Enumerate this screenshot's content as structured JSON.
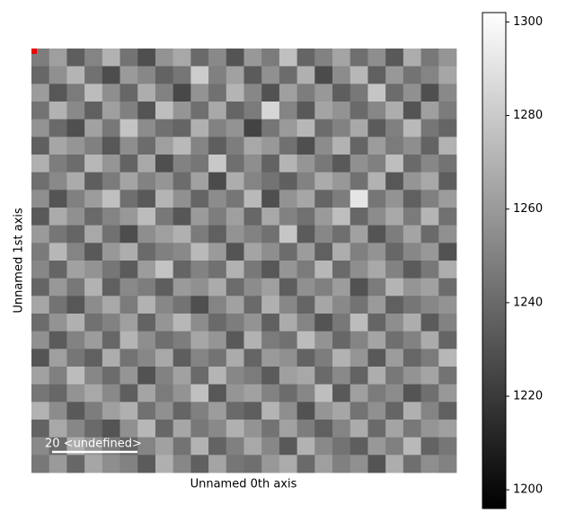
{
  "chart_data": {
    "type": "heatmap",
    "colormap": "gray",
    "xlabel": "Unnamed 0th axis",
    "ylabel": "Unnamed 1st axis",
    "scalebar_label": "20 <undefined>",
    "clim": [
      1196,
      1302
    ],
    "cticks": [
      1200,
      1220,
      1240,
      1260,
      1280,
      1300
    ],
    "values": [
      [
        1248,
        1262,
        1235,
        1251,
        1270,
        1244,
        1229,
        1257,
        1266,
        1240,
        1253,
        1231,
        1259,
        1247,
        1276,
        1238,
        1250,
        1264,
        1242,
        1255,
        1233,
        1268,
        1246,
        1258
      ],
      [
        1239,
        1256,
        1271,
        1243,
        1228,
        1260,
        1252,
        1237,
        1245,
        1281,
        1249,
        1263,
        1234,
        1256,
        1241,
        1269,
        1227,
        1254,
        1272,
        1236,
        1259,
        1244,
        1251,
        1265
      ],
      [
        1261,
        1232,
        1247,
        1274,
        1255,
        1239,
        1268,
        1250,
        1226,
        1257,
        1243,
        1271,
        1252,
        1230,
        1262,
        1248,
        1259,
        1235,
        1246,
        1278,
        1241,
        1256,
        1229,
        1253
      ],
      [
        1244,
        1270,
        1253,
        1236,
        1262,
        1249,
        1231,
        1275,
        1258,
        1242,
        1266,
        1238,
        1247,
        1285,
        1251,
        1233,
        1264,
        1257,
        1240,
        1252,
        1268,
        1231,
        1262,
        1247
      ],
      [
        1257,
        1240,
        1229,
        1263,
        1246,
        1277,
        1254,
        1243,
        1238,
        1269,
        1250,
        1257,
        1224,
        1245,
        1260,
        1272,
        1241,
        1250,
        1266,
        1234,
        1249,
        1273,
        1245,
        1238
      ],
      [
        1236,
        1265,
        1258,
        1249,
        1232,
        1255,
        1241,
        1262,
        1273,
        1251,
        1235,
        1248,
        1266,
        1259,
        1243,
        1229,
        1254,
        1270,
        1238,
        1261,
        1247,
        1255,
        1237,
        1270
      ],
      [
        1269,
        1248,
        1241,
        1272,
        1258,
        1237,
        1266,
        1229,
        1250,
        1245,
        1279,
        1242,
        1255,
        1237,
        1271,
        1258,
        1246,
        1233,
        1256,
        1249,
        1275,
        1240,
        1252,
        1244
      ],
      [
        1242,
        1253,
        1267,
        1235,
        1247,
        1264,
        1250,
        1258,
        1241,
        1263,
        1227,
        1268,
        1251,
        1244,
        1236,
        1250,
        1267,
        1259,
        1243,
        1270,
        1232,
        1258,
        1266,
        1235
      ],
      [
        1255,
        1231,
        1249,
        1261,
        1276,
        1242,
        1233,
        1271,
        1256,
        1238,
        1254,
        1245,
        1273,
        1229,
        1257,
        1265,
        1238,
        1248,
        1291,
        1245,
        1257,
        1236,
        1249,
        1261
      ],
      [
        1233,
        1267,
        1256,
        1240,
        1251,
        1259,
        1274,
        1246,
        1232,
        1260,
        1248,
        1262,
        1239,
        1266,
        1250,
        1243,
        1260,
        1275,
        1239,
        1254,
        1266,
        1247,
        1271,
        1243
      ],
      [
        1260,
        1245,
        1238,
        1266,
        1243,
        1228,
        1255,
        1262,
        1269,
        1247,
        1236,
        1257,
        1250,
        1243,
        1278,
        1234,
        1252,
        1242,
        1263,
        1231,
        1248,
        1264,
        1240,
        1256
      ],
      [
        1247,
        1272,
        1251,
        1233,
        1259,
        1268,
        1240,
        1249,
        1253,
        1273,
        1260,
        1231,
        1264,
        1255,
        1241,
        1261,
        1236,
        1268,
        1249,
        1257,
        1239,
        1252,
        1259,
        1230
      ],
      [
        1252,
        1238,
        1263,
        1257,
        1245,
        1234,
        1261,
        1277,
        1238,
        1250,
        1243,
        1270,
        1246,
        1232,
        1258,
        1247,
        1272,
        1240,
        1255,
        1266,
        1250,
        1234,
        1246,
        1268
      ],
      [
        1238,
        1259,
        1246,
        1270,
        1236,
        1253,
        1248,
        1235,
        1260,
        1256,
        1267,
        1241,
        1254,
        1262,
        1235,
        1256,
        1249,
        1261,
        1230,
        1247,
        1271,
        1258,
        1263,
        1241
      ],
      [
        1265,
        1244,
        1232,
        1254,
        1266,
        1247,
        1270,
        1252,
        1244,
        1229,
        1251,
        1263,
        1240,
        1269,
        1252,
        1238,
        1265,
        1253,
        1244,
        1260,
        1236,
        1245,
        1252,
        1257
      ],
      [
        1241,
        1257,
        1269,
        1243,
        1250,
        1262,
        1237,
        1258,
        1272,
        1254,
        1240,
        1248,
        1257,
        1236,
        1267,
        1251,
        1231,
        1246,
        1274,
        1238,
        1255,
        1268,
        1234,
        1250
      ],
      [
        1256,
        1234,
        1250,
        1261,
        1239,
        1271,
        1255,
        1242,
        1248,
        1265,
        1258,
        1233,
        1270,
        1247,
        1243,
        1274,
        1257,
        1239,
        1251,
        1264,
        1242,
        1250,
        1267,
        1238
      ],
      [
        1231,
        1262,
        1245,
        1236,
        1268,
        1244,
        1252,
        1266,
        1235,
        1251,
        1244,
        1267,
        1238,
        1260,
        1256,
        1237,
        1248,
        1270,
        1258,
        1233,
        1261,
        1239,
        1247,
        1272
      ],
      [
        1263,
        1249,
        1274,
        1252,
        1241,
        1258,
        1230,
        1250,
        1263,
        1240,
        1271,
        1252,
        1247,
        1234,
        1262,
        1266,
        1240,
        1253,
        1237,
        1268,
        1246,
        1257,
        1264,
        1244
      ],
      [
        1245,
        1239,
        1257,
        1266,
        1253,
        1235,
        1264,
        1247,
        1257,
        1276,
        1232,
        1258,
        1263,
        1250,
        1241,
        1252,
        1275,
        1233,
        1262,
        1247,
        1254,
        1231,
        1242,
        1259
      ],
      [
        1270,
        1254,
        1233,
        1248,
        1262,
        1269,
        1243,
        1256,
        1238,
        1249,
        1261,
        1240,
        1235,
        1271,
        1255,
        1230,
        1258,
        1265,
        1244,
        1256,
        1238,
        1269,
        1251,
        1236
      ],
      [
        1237,
        1266,
        1252,
        1240,
        1231,
        1256,
        1272,
        1239,
        1265,
        1246,
        1253,
        1269,
        1257,
        1244,
        1263,
        1248,
        1236,
        1251,
        1267,
        1240,
        1264,
        1246,
        1258,
        1262
      ],
      [
        1253,
        1241,
        1268,
        1258,
        1247,
        1238,
        1251,
        1263,
        1244,
        1270,
        1237,
        1249,
        1266,
        1252,
        1233,
        1270,
        1253,
        1244,
        1235,
        1259,
        1249,
        1273,
        1237,
        1245
      ],
      [
        1246,
        1260,
        1239,
        1265,
        1255,
        1250,
        1234,
        1269,
        1252,
        1236,
        1264,
        1245,
        1242,
        1259,
        1267,
        1240,
        1262,
        1249,
        1256,
        1231,
        1268,
        1242,
        1255,
        1250
      ]
    ]
  }
}
